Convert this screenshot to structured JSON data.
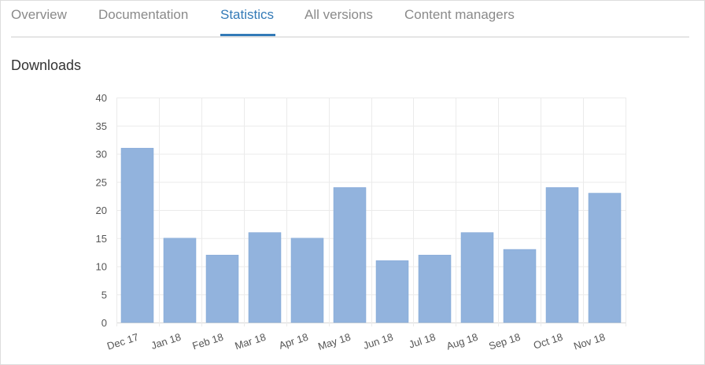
{
  "tabs": [
    {
      "label": "Overview",
      "active": false
    },
    {
      "label": "Documentation",
      "active": false
    },
    {
      "label": "Statistics",
      "active": true
    },
    {
      "label": "All versions",
      "active": false
    },
    {
      "label": "Content managers",
      "active": false
    }
  ],
  "section_title": "Downloads",
  "colors": {
    "accent": "#337ab7",
    "bar": "#92b3dd",
    "grid": "#ebebeb"
  },
  "chart_data": {
    "type": "bar",
    "title": "",
    "xlabel": "",
    "ylabel": "",
    "ylim": [
      0,
      40
    ],
    "yticks": [
      0,
      5,
      10,
      15,
      20,
      25,
      30,
      35,
      40
    ],
    "grid": true,
    "categories": [
      "Dec 17",
      "Jan 18",
      "Feb 18",
      "Mar 18",
      "Apr 18",
      "May 18",
      "Jun 18",
      "Jul 18",
      "Aug 18",
      "Sep 18",
      "Oct 18",
      "Nov 18"
    ],
    "values": [
      31,
      15,
      12,
      16,
      15,
      24,
      11,
      12,
      16,
      13,
      24,
      23
    ]
  }
}
